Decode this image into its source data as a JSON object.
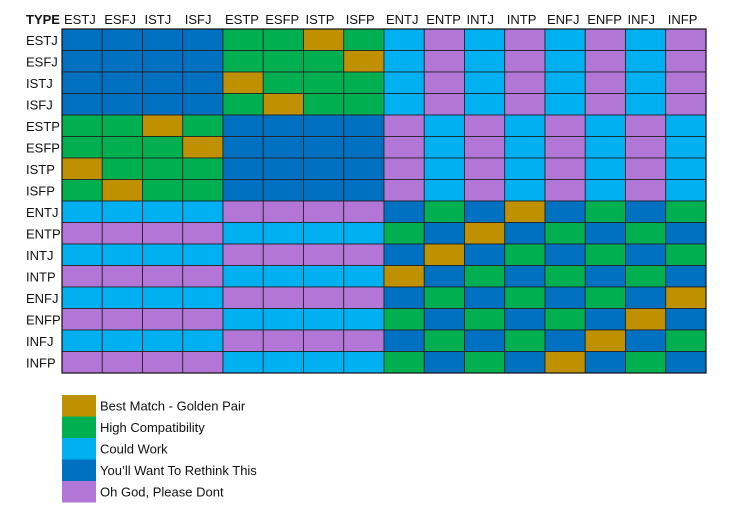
{
  "chart_data": {
    "type": "heatmap",
    "corner_label": "TYPE",
    "columns": [
      "ESTJ",
      "ESFJ",
      "ISTJ",
      "ISFJ",
      "ESTP",
      "ESFP",
      "ISTP",
      "ISFP",
      "ENTJ",
      "ENTP",
      "INTJ",
      "INTP",
      "ENFJ",
      "ENFP",
      "INFJ",
      "INFP"
    ],
    "rows": [
      "ESTJ",
      "ESFJ",
      "ISTJ",
      "ISFJ",
      "ESTP",
      "ESFP",
      "ISTP",
      "ISFP",
      "ENTJ",
      "ENTP",
      "INTJ",
      "INTP",
      "ENFJ",
      "ENFP",
      "INFJ",
      "INFP"
    ],
    "matrix": [
      [
        "R",
        "R",
        "R",
        "R",
        "H",
        "H",
        "B",
        "H",
        "C",
        "P",
        "C",
        "P",
        "C",
        "P",
        "C",
        "P"
      ],
      [
        "R",
        "R",
        "R",
        "R",
        "H",
        "H",
        "H",
        "B",
        "C",
        "P",
        "C",
        "P",
        "C",
        "P",
        "C",
        "P"
      ],
      [
        "R",
        "R",
        "R",
        "R",
        "B",
        "H",
        "H",
        "H",
        "C",
        "P",
        "C",
        "P",
        "C",
        "P",
        "C",
        "P"
      ],
      [
        "R",
        "R",
        "R",
        "R",
        "H",
        "B",
        "H",
        "H",
        "C",
        "P",
        "C",
        "P",
        "C",
        "P",
        "C",
        "P"
      ],
      [
        "H",
        "H",
        "B",
        "H",
        "R",
        "R",
        "R",
        "R",
        "P",
        "C",
        "P",
        "C",
        "P",
        "C",
        "P",
        "C"
      ],
      [
        "H",
        "H",
        "H",
        "B",
        "R",
        "R",
        "R",
        "R",
        "P",
        "C",
        "P",
        "C",
        "P",
        "C",
        "P",
        "C"
      ],
      [
        "B",
        "H",
        "H",
        "H",
        "R",
        "R",
        "R",
        "R",
        "P",
        "C",
        "P",
        "C",
        "P",
        "C",
        "P",
        "C"
      ],
      [
        "H",
        "B",
        "H",
        "H",
        "R",
        "R",
        "R",
        "R",
        "P",
        "C",
        "P",
        "C",
        "P",
        "C",
        "P",
        "C"
      ],
      [
        "C",
        "C",
        "C",
        "C",
        "P",
        "P",
        "P",
        "P",
        "R",
        "H",
        "R",
        "B",
        "R",
        "H",
        "R",
        "H"
      ],
      [
        "P",
        "P",
        "P",
        "P",
        "C",
        "C",
        "C",
        "C",
        "H",
        "R",
        "B",
        "R",
        "H",
        "R",
        "H",
        "R"
      ],
      [
        "C",
        "C",
        "C",
        "C",
        "P",
        "P",
        "P",
        "P",
        "R",
        "B",
        "R",
        "H",
        "R",
        "H",
        "R",
        "H"
      ],
      [
        "P",
        "P",
        "P",
        "P",
        "C",
        "C",
        "C",
        "C",
        "B",
        "R",
        "H",
        "R",
        "H",
        "R",
        "H",
        "R"
      ],
      [
        "C",
        "C",
        "C",
        "C",
        "P",
        "P",
        "P",
        "P",
        "R",
        "H",
        "R",
        "H",
        "R",
        "H",
        "R",
        "B"
      ],
      [
        "P",
        "P",
        "P",
        "P",
        "C",
        "C",
        "C",
        "C",
        "H",
        "R",
        "H",
        "R",
        "H",
        "R",
        "B",
        "R"
      ],
      [
        "C",
        "C",
        "C",
        "C",
        "P",
        "P",
        "P",
        "P",
        "R",
        "H",
        "R",
        "H",
        "R",
        "B",
        "R",
        "H"
      ],
      [
        "P",
        "P",
        "P",
        "P",
        "C",
        "C",
        "C",
        "C",
        "H",
        "R",
        "H",
        "R",
        "B",
        "R",
        "H",
        "R"
      ]
    ],
    "categories": [
      {
        "key": "B",
        "label": "Best Match - Golden Pair",
        "color": "#bf9000"
      },
      {
        "key": "H",
        "label": "High Compatibility",
        "color": "#00b050"
      },
      {
        "key": "C",
        "label": "Could Work",
        "color": "#00b0f0"
      },
      {
        "key": "R",
        "label": "You’ll Want To Rethink This",
        "color": "#0070c0"
      },
      {
        "key": "P",
        "label": "Oh God, Please Dont",
        "color": "#b176d6"
      }
    ],
    "legend_position": "bottom-left",
    "grid": true
  }
}
